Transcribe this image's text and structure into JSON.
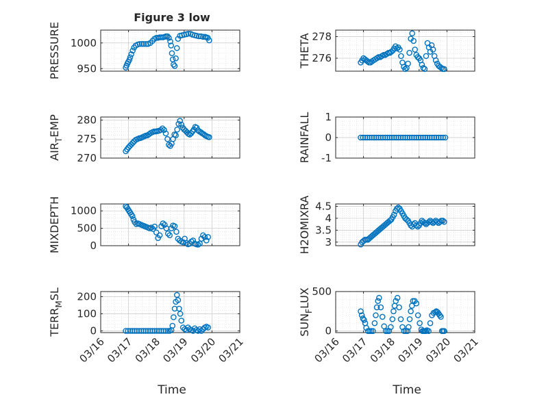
{
  "figure": {
    "title": "Figure 3 low",
    "xlabel": "Time",
    "marker_color": "#0072BD"
  },
  "chart_data": [
    {
      "type": "scatter",
      "id": "pressure",
      "ylabel": "PRESSURE",
      "ylabel_sub": "",
      "ylim": [
        945,
        1025
      ],
      "yticks": [
        950,
        1000
      ],
      "ytick_labels": [
        "950",
        "1000"
      ],
      "xlim": [
        "03/16",
        "03/21"
      ],
      "show_xticklabels": false,
      "xtick_labels": [
        "03/16",
        "03/17",
        "03/18",
        "03/19",
        "03/20",
        "03/21"
      ],
      "x": [
        16.9,
        16.93,
        16.96,
        16.99,
        17.03,
        17.06,
        17.1,
        17.15,
        17.2,
        17.26,
        17.33,
        17.4,
        17.48,
        17.55,
        17.63,
        17.7,
        17.78,
        17.86,
        17.93,
        18.0,
        18.06,
        18.12,
        18.18,
        18.24,
        18.3,
        18.35,
        18.4,
        18.45,
        18.5,
        18.53,
        18.56,
        18.59,
        18.62,
        18.66,
        18.7,
        18.74,
        18.78,
        18.85,
        18.92,
        19.0,
        19.08,
        19.15,
        19.23,
        19.3,
        19.38,
        19.45,
        19.53,
        19.6,
        19.68,
        19.75,
        19.8,
        19.85,
        19.9
      ],
      "y": [
        952,
        956,
        960,
        963,
        967,
        972,
        978,
        985,
        991,
        995,
        997,
        998,
        998,
        998,
        998,
        998,
        1000,
        1004,
        1008,
        1010,
        1010,
        1011,
        1011,
        1011,
        1012,
        1013,
        1013,
        1010,
        1003,
        995,
        980,
        968,
        958,
        955,
        970,
        990,
        1008,
        1014,
        1015,
        1016,
        1017,
        1018,
        1018,
        1016,
        1015,
        1014,
        1013,
        1013,
        1012,
        1012,
        1011,
        1010,
        1005
      ]
    },
    {
      "type": "scatter",
      "id": "theta",
      "ylabel": "THETA",
      "ylabel_sub": "",
      "ylim": [
        274.8,
        278.6
      ],
      "yticks": [
        276,
        278
      ],
      "ytick_labels": [
        "276",
        "278"
      ],
      "xlim": [
        "03/16",
        "03/21"
      ],
      "show_xticklabels": false,
      "xtick_labels": [
        "03/16",
        "03/17",
        "03/18",
        "03/19",
        "03/20",
        "03/21"
      ],
      "x": [
        16.9,
        16.95,
        17.0,
        17.05,
        17.1,
        17.15,
        17.2,
        17.25,
        17.3,
        17.36,
        17.42,
        17.48,
        17.54,
        17.6,
        17.66,
        17.72,
        17.78,
        17.84,
        17.9,
        17.95,
        18.0,
        18.05,
        18.1,
        18.15,
        18.2,
        18.25,
        18.3,
        18.35,
        18.4,
        18.45,
        18.5,
        18.55,
        18.6,
        18.65,
        18.7,
        18.75,
        18.8,
        18.85,
        18.9,
        18.95,
        19.0,
        19.05,
        19.1,
        19.15,
        19.2,
        19.25,
        19.3,
        19.35,
        19.4,
        19.45,
        19.5,
        19.55,
        19.6,
        19.65,
        19.7,
        19.75,
        19.8,
        19.85,
        19.9
      ],
      "y": [
        275.6,
        275.8,
        276.0,
        275.9,
        275.8,
        275.7,
        275.6,
        275.6,
        275.7,
        275.8,
        275.9,
        276.0,
        276.1,
        276.1,
        276.2,
        276.3,
        276.3,
        276.4,
        276.5,
        276.5,
        276.6,
        276.7,
        276.9,
        277.1,
        276.9,
        277.0,
        276.8,
        276.2,
        275.6,
        275.2,
        275.0,
        275.1,
        275.5,
        276.5,
        277.8,
        278.3,
        277.6,
        276.8,
        276.3,
        276.1,
        276.0,
        275.8,
        275.4,
        275.1,
        275.0,
        276.2,
        277.4,
        277.0,
        276.6,
        277.2,
        276.8,
        276.2,
        275.8,
        275.5,
        275.3,
        275.2,
        275.1,
        275.0,
        275.0
      ]
    },
    {
      "type": "scatter",
      "id": "air_temp",
      "ylabel": "AIR",
      "ylabel_sub": "T",
      "ylabel_tail": "EMP",
      "ylim": [
        270,
        280.8
      ],
      "yticks": [
        270,
        275,
        280
      ],
      "ytick_labels": [
        "270",
        "275",
        "280"
      ],
      "xlim": [
        "03/16",
        "03/21"
      ],
      "show_xticklabels": false,
      "xtick_labels": [
        "03/16",
        "03/17",
        "03/18",
        "03/19",
        "03/20",
        "03/21"
      ],
      "x": [
        16.9,
        16.95,
        17.0,
        17.05,
        17.1,
        17.15,
        17.2,
        17.26,
        17.32,
        17.38,
        17.44,
        17.5,
        17.56,
        17.62,
        17.68,
        17.74,
        17.8,
        17.86,
        17.92,
        17.98,
        18.04,
        18.1,
        18.16,
        18.22,
        18.28,
        18.34,
        18.4,
        18.45,
        18.5,
        18.55,
        18.6,
        18.65,
        18.7,
        18.75,
        18.8,
        18.85,
        18.9,
        18.95,
        19.0,
        19.05,
        19.1,
        19.15,
        19.2,
        19.25,
        19.3,
        19.35,
        19.4,
        19.45,
        19.5,
        19.55,
        19.6,
        19.65,
        19.7,
        19.75,
        19.8,
        19.85,
        19.9
      ],
      "y": [
        271.8,
        272.3,
        272.8,
        273.2,
        273.6,
        274.0,
        274.4,
        274.8,
        275.0,
        275.2,
        275.3,
        275.5,
        275.7,
        275.9,
        276.0,
        276.3,
        276.6,
        276.8,
        277.0,
        277.0,
        277.1,
        277.2,
        277.4,
        277.8,
        277.4,
        276.5,
        275.0,
        273.5,
        273.2,
        273.8,
        275.0,
        276.2,
        276.0,
        277.5,
        279.0,
        279.8,
        278.8,
        278.0,
        277.5,
        277.2,
        276.8,
        276.4,
        276.2,
        276.5,
        277.0,
        277.5,
        278.2,
        278.0,
        277.3,
        277.0,
        276.8,
        276.5,
        276.3,
        276.0,
        275.8,
        275.6,
        275.5
      ]
    },
    {
      "type": "scatter",
      "id": "rainfall",
      "ylabel": "RAINFALL",
      "ylabel_sub": "",
      "ylim": [
        -1,
        1
      ],
      "yticks": [
        -1,
        0,
        1
      ],
      "ytick_labels": [
        "-1",
        "0",
        "1"
      ],
      "xlim": [
        "03/16",
        "03/21"
      ],
      "show_xticklabels": false,
      "xtick_labels": [
        "03/16",
        "03/17",
        "03/18",
        "03/19",
        "03/20",
        "03/21"
      ],
      "x": [
        16.9,
        16.98,
        17.06,
        17.14,
        17.22,
        17.3,
        17.38,
        17.46,
        17.54,
        17.62,
        17.7,
        17.78,
        17.86,
        17.94,
        18.02,
        18.1,
        18.18,
        18.26,
        18.34,
        18.42,
        18.5,
        18.58,
        18.66,
        18.74,
        18.82,
        18.9,
        18.98,
        19.06,
        19.14,
        19.22,
        19.3,
        19.38,
        19.46,
        19.54,
        19.62,
        19.7,
        19.78,
        19.86,
        19.94
      ],
      "y": [
        0,
        0,
        0,
        0,
        0,
        0,
        0,
        0,
        0,
        0,
        0,
        0,
        0,
        0,
        0,
        0,
        0,
        0,
        0,
        0,
        0,
        0,
        0,
        0,
        0,
        0,
        0,
        0,
        0,
        0,
        0,
        0,
        0,
        0,
        0,
        0,
        0,
        0,
        0
      ]
    },
    {
      "type": "scatter",
      "id": "mixdepth",
      "ylabel": "MIXDEPTH",
      "ylabel_sub": "",
      "ylim": [
        0,
        1200
      ],
      "yticks": [
        0,
        500,
        1000
      ],
      "ytick_labels": [
        "0",
        "500",
        "1000"
      ],
      "xlim": [
        "03/16",
        "03/21"
      ],
      "show_xticklabels": false,
      "xtick_labels": [
        "03/16",
        "03/17",
        "03/18",
        "03/19",
        "03/20",
        "03/21"
      ],
      "x": [
        16.9,
        16.94,
        16.98,
        17.02,
        17.06,
        17.1,
        17.14,
        17.18,
        17.22,
        17.28,
        17.34,
        17.4,
        17.46,
        17.52,
        17.58,
        17.64,
        17.7,
        17.76,
        17.82,
        17.88,
        17.94,
        18.0,
        18.06,
        18.12,
        18.18,
        18.24,
        18.3,
        18.36,
        18.42,
        18.48,
        18.54,
        18.6,
        18.66,
        18.72,
        18.78,
        18.84,
        18.9,
        18.96,
        19.02,
        19.08,
        19.14,
        19.2,
        19.26,
        19.32,
        19.38,
        19.44,
        19.5,
        19.56,
        19.62,
        19.68,
        19.74,
        19.8,
        19.86
      ],
      "y": [
        1130,
        1100,
        1050,
        1000,
        950,
        900,
        850,
        750,
        680,
        620,
        640,
        620,
        600,
        580,
        560,
        540,
        520,
        500,
        520,
        480,
        550,
        380,
        220,
        300,
        560,
        640,
        600,
        500,
        350,
        300,
        500,
        580,
        560,
        400,
        200,
        150,
        120,
        100,
        200,
        80,
        40,
        60,
        120,
        150,
        60,
        40,
        30,
        60,
        200,
        300,
        250,
        150,
        250
      ]
    },
    {
      "type": "scatter",
      "id": "h2omixra",
      "ylabel": "H2OMIXRA",
      "ylabel_sub": "",
      "ylim": [
        2.85,
        4.6
      ],
      "yticks": [
        3,
        3.5,
        4,
        4.5
      ],
      "ytick_labels": [
        "3",
        "3.5",
        "4",
        "4.5"
      ],
      "xlim": [
        "03/16",
        "03/21"
      ],
      "show_xticklabels": false,
      "xtick_labels": [
        "03/16",
        "03/17",
        "03/18",
        "03/19",
        "03/20",
        "03/21"
      ],
      "x": [
        16.9,
        16.95,
        17.0,
        17.05,
        17.1,
        17.15,
        17.2,
        17.25,
        17.3,
        17.35,
        17.4,
        17.45,
        17.5,
        17.55,
        17.6,
        17.65,
        17.7,
        17.75,
        17.8,
        17.85,
        17.9,
        17.95,
        18.0,
        18.05,
        18.1,
        18.15,
        18.2,
        18.25,
        18.3,
        18.35,
        18.4,
        18.45,
        18.5,
        18.55,
        18.6,
        18.65,
        18.7,
        18.75,
        18.8,
        18.85,
        18.9,
        18.95,
        19.0,
        19.05,
        19.1,
        19.15,
        19.2,
        19.25,
        19.3,
        19.35,
        19.4,
        19.45,
        19.5,
        19.55,
        19.6,
        19.65,
        19.7,
        19.75,
        19.8,
        19.85,
        19.9
      ],
      "y": [
        2.9,
        3.0,
        3.05,
        3.1,
        3.1,
        3.1,
        3.15,
        3.2,
        3.25,
        3.3,
        3.35,
        3.4,
        3.45,
        3.5,
        3.55,
        3.6,
        3.65,
        3.7,
        3.75,
        3.8,
        3.85,
        3.9,
        3.95,
        4.05,
        4.15,
        4.3,
        4.4,
        4.45,
        4.4,
        4.3,
        4.2,
        4.1,
        4.0,
        3.95,
        3.9,
        3.8,
        3.7,
        3.65,
        3.75,
        3.8,
        3.7,
        3.65,
        3.7,
        3.8,
        3.9,
        3.85,
        3.8,
        3.75,
        3.8,
        3.85,
        3.9,
        3.85,
        3.8,
        3.85,
        3.9,
        3.85,
        3.8,
        3.85,
        3.9,
        3.9,
        3.85
      ]
    },
    {
      "type": "scatter",
      "id": "terr_msl",
      "ylabel": "TERR",
      "ylabel_sub": "M",
      "ylabel_tail": "SL",
      "ylim": [
        -10,
        230
      ],
      "yticks": [
        0,
        100,
        200
      ],
      "ytick_labels": [
        "0",
        "100",
        "200"
      ],
      "xlim": [
        "03/16",
        "03/21"
      ],
      "show_xticklabels": true,
      "xtick_labels": [
        "03/16",
        "03/17",
        "03/18",
        "03/19",
        "03/20",
        "03/21"
      ],
      "x": [
        16.9,
        16.98,
        17.06,
        17.14,
        17.22,
        17.3,
        17.38,
        17.46,
        17.54,
        17.62,
        17.7,
        17.78,
        17.86,
        17.94,
        18.02,
        18.1,
        18.18,
        18.26,
        18.34,
        18.42,
        18.48,
        18.54,
        18.58,
        18.62,
        18.66,
        18.7,
        18.74,
        18.78,
        18.82,
        18.86,
        18.9,
        18.96,
        19.02,
        19.08,
        19.14,
        19.2,
        19.26,
        19.32,
        19.38,
        19.44,
        19.5,
        19.56,
        19.62,
        19.68,
        19.74,
        19.8,
        19.86
      ],
      "y": [
        0,
        0,
        0,
        0,
        0,
        0,
        0,
        0,
        0,
        0,
        0,
        0,
        0,
        0,
        0,
        0,
        0,
        0,
        0,
        0,
        0,
        5,
        30,
        80,
        130,
        170,
        210,
        180,
        130,
        100,
        60,
        20,
        10,
        5,
        20,
        10,
        5,
        0,
        15,
        5,
        0,
        10,
        0,
        10,
        20,
        25,
        20
      ]
    },
    {
      "type": "scatter",
      "id": "sun_flux",
      "ylabel": "SUN",
      "ylabel_sub": "F",
      "ylabel_tail": "LUX",
      "ylim": [
        -20,
        500
      ],
      "yticks": [
        0,
        500
      ],
      "ytick_labels": [
        "0",
        "500"
      ],
      "xlim": [
        "03/16",
        "03/21"
      ],
      "show_xticklabels": true,
      "xtick_labels": [
        "03/16",
        "03/17",
        "03/18",
        "03/19",
        "03/20",
        "03/21"
      ],
      "x": [
        16.9,
        16.94,
        16.98,
        17.02,
        17.06,
        17.1,
        17.16,
        17.22,
        17.28,
        17.34,
        17.4,
        17.44,
        17.48,
        17.52,
        17.56,
        17.62,
        17.68,
        17.74,
        17.8,
        17.86,
        17.92,
        17.98,
        18.04,
        18.08,
        18.12,
        18.16,
        18.22,
        18.28,
        18.34,
        18.4,
        18.46,
        18.52,
        18.58,
        18.62,
        18.66,
        18.7,
        18.74,
        18.78,
        18.84,
        18.9,
        18.96,
        19.02,
        19.08,
        19.12,
        19.16,
        19.2,
        19.24,
        19.28,
        19.34,
        19.4,
        19.46,
        19.52,
        19.58,
        19.62,
        19.66,
        19.7,
        19.74,
        19.78,
        19.82,
        19.86,
        19.9
      ],
      "y": [
        250,
        200,
        160,
        140,
        100,
        40,
        0,
        0,
        0,
        0,
        100,
        200,
        300,
        380,
        420,
        300,
        180,
        60,
        0,
        0,
        0,
        50,
        150,
        250,
        320,
        380,
        420,
        300,
        150,
        50,
        0,
        0,
        0,
        50,
        150,
        250,
        320,
        380,
        380,
        350,
        200,
        100,
        20,
        0,
        0,
        0,
        0,
        10,
        0,
        100,
        200,
        230,
        240,
        250,
        240,
        220,
        200,
        180,
        0,
        0,
        0
      ]
    }
  ]
}
